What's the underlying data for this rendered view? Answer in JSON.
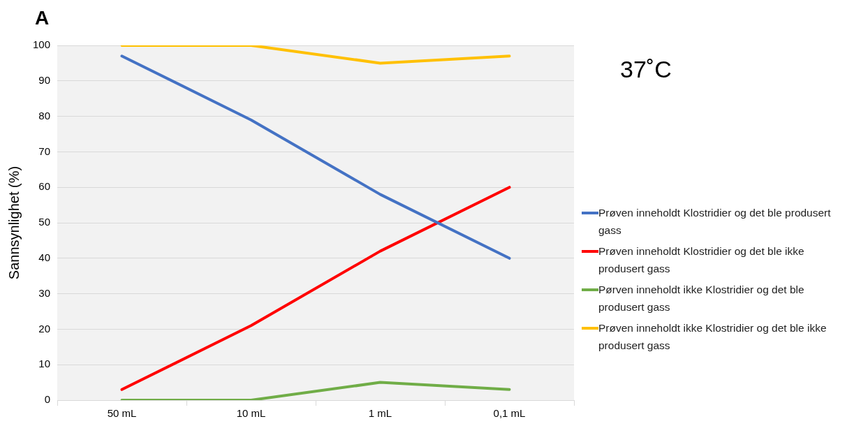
{
  "chart_data": {
    "type": "line",
    "ylabel": "Sannsynlighet (%)",
    "annotations": [
      "A",
      "37˚C"
    ],
    "categories": [
      "50 mL",
      "10 mL",
      "1 mL",
      "0,1 mL"
    ],
    "series": [
      {
        "name": "Prøven inneholdt Klostridier og det ble produsert gass",
        "color": "#4472c4",
        "values": [
          97,
          79,
          58,
          40
        ]
      },
      {
        "name": "Prøven inneholdt Klostridier og det ble ikke produsert gass",
        "color": "#ff0000",
        "values": [
          3,
          21,
          42,
          60
        ]
      },
      {
        "name": "Pørven inneholdt ikke Klostridier og det ble produsert gass",
        "color": "#70ad47",
        "values": [
          0,
          0,
          5,
          3
        ]
      },
      {
        "name": "Prøven inneholdt ikke Klostridier og det ble ikke produsert gass",
        "color": "#ffc000",
        "values": [
          100,
          100,
          95,
          97
        ]
      }
    ],
    "ylim": [
      0,
      100
    ],
    "yticks": [
      0,
      10,
      20,
      30,
      40,
      50,
      60,
      70,
      80,
      90,
      100
    ],
    "grid": "y",
    "legend": "right",
    "marker": "none",
    "line_style": "solid"
  }
}
